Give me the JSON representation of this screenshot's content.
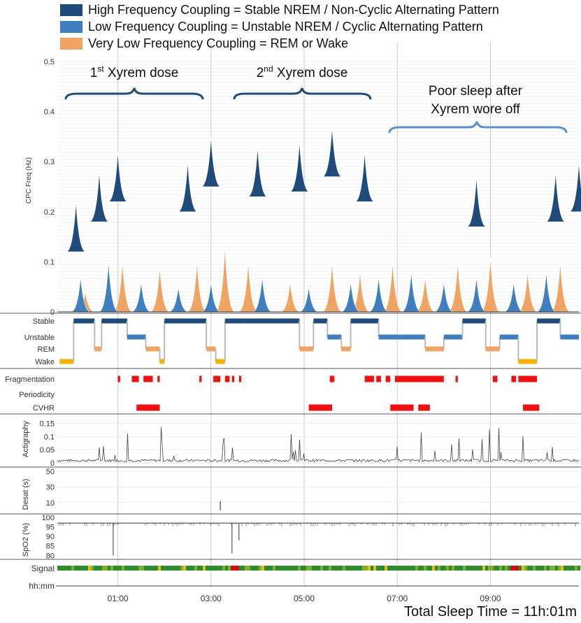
{
  "legend": {
    "high": {
      "label": "High Frequency Coupling = Stable NREM / Non-Cyclic Alternating Pattern",
      "color": "#1f4b7a"
    },
    "low": {
      "label": "Low Frequency Coupling = Unstable NREM / Cyclic Alternating Pattern",
      "color": "#3f7fbf"
    },
    "vlow": {
      "label": "Very Low Frequency Coupling = REM or Wake",
      "color": "#f0a464"
    }
  },
  "annotations": {
    "dose1": {
      "num": "1",
      "sup": "st",
      "text": " Xyrem dose"
    },
    "dose2": {
      "num": "2",
      "sup": "nd",
      "text": " Xyrem dose"
    },
    "poor_line1": "Poor sleep after",
    "poor_line2": "Xyrem wore off"
  },
  "total_sleep": "Total Sleep Time = 11h:01m",
  "chart_data": {
    "type": "area",
    "time_range_h": [
      23.7,
      10.9
    ],
    "time_axis": {
      "label": "hh:mm",
      "ticks": [
        "01:00",
        "03:00",
        "05:00",
        "07:00",
        "09:00"
      ],
      "tick_hours": [
        1,
        3,
        5,
        7,
        9
      ],
      "grid_hours": [
        1,
        3,
        5,
        7,
        9
      ]
    },
    "cpc_panel": {
      "ylabel": "CPC Freq (Hz)",
      "ylim": [
        0,
        0.5
      ],
      "yticks": [
        "0",
        "0.1",
        "0.2",
        "0.3",
        "0.4",
        "0.5"
      ],
      "ytick_values": [
        0,
        0.1,
        0.2,
        0.3,
        0.4,
        0.5
      ],
      "series": [
        {
          "key": "vlow",
          "peaks": [
            [
              0.3,
              0.04
            ],
            [
              1.1,
              0.1
            ],
            [
              1.9,
              0.09
            ],
            [
              2.7,
              0.1
            ],
            [
              3.3,
              0.13
            ],
            [
              3.8,
              0.1
            ],
            [
              4.7,
              0.06
            ],
            [
              5.6,
              0.1
            ],
            [
              6.2,
              0.08
            ],
            [
              6.9,
              0.1
            ],
            [
              7.6,
              0.07
            ],
            [
              8.3,
              0.1
            ],
            [
              9.0,
              0.11
            ],
            [
              9.8,
              0.08
            ],
            [
              10.5,
              0.1
            ]
          ]
        },
        {
          "key": "low",
          "peaks": [
            [
              0.2,
              0.07
            ],
            [
              0.8,
              0.1
            ],
            [
              1.5,
              0.06
            ],
            [
              2.3,
              0.05
            ],
            [
              3.0,
              0.06
            ],
            [
              4.1,
              0.07
            ],
            [
              5.1,
              0.05
            ],
            [
              6.0,
              0.06
            ],
            [
              6.6,
              0.07
            ],
            [
              7.3,
              0.08
            ],
            [
              8.0,
              0.06
            ],
            [
              8.7,
              0.07
            ],
            [
              9.5,
              0.06
            ],
            [
              10.2,
              0.08
            ]
          ]
        },
        {
          "key": "high",
          "peaks": [
            [
              0.1,
              0.22
            ],
            [
              0.6,
              0.28
            ],
            [
              1.0,
              0.32
            ],
            [
              2.5,
              0.3
            ],
            [
              3.0,
              0.35
            ],
            [
              4.0,
              0.33
            ],
            [
              4.9,
              0.34
            ],
            [
              5.6,
              0.37
            ],
            [
              6.3,
              0.32
            ],
            [
              8.7,
              0.27
            ],
            [
              10.4,
              0.28
            ],
            [
              10.9,
              0.3
            ]
          ]
        }
      ]
    },
    "hypnogram": {
      "states": [
        "Stable",
        "Unstable",
        "REM",
        "Wake"
      ],
      "state_colors": [
        "#1f4b7a",
        "#3f7fbf",
        "#f0a464",
        "#f5b400"
      ],
      "segments": [
        [
          23.75,
          0.05,
          3
        ],
        [
          0.05,
          0.5,
          0
        ],
        [
          0.5,
          0.65,
          2
        ],
        [
          0.65,
          1.2,
          0
        ],
        [
          1.2,
          1.6,
          1
        ],
        [
          1.6,
          1.9,
          2
        ],
        [
          1.9,
          2.0,
          3
        ],
        [
          2.0,
          2.9,
          0
        ],
        [
          2.9,
          3.1,
          2
        ],
        [
          3.1,
          3.3,
          3
        ],
        [
          3.3,
          3.7,
          0
        ],
        [
          3.7,
          4.9,
          0
        ],
        [
          4.9,
          5.2,
          2
        ],
        [
          5.2,
          5.5,
          0
        ],
        [
          5.5,
          5.8,
          1
        ],
        [
          5.8,
          6.0,
          2
        ],
        [
          6.0,
          6.6,
          0
        ],
        [
          6.6,
          7.6,
          1
        ],
        [
          7.6,
          8.0,
          2
        ],
        [
          8.0,
          8.4,
          1
        ],
        [
          8.4,
          8.9,
          0
        ],
        [
          8.9,
          9.2,
          2
        ],
        [
          9.2,
          9.6,
          1
        ],
        [
          9.6,
          10.0,
          3
        ],
        [
          10.0,
          10.5,
          0
        ],
        [
          10.5,
          10.9,
          1
        ]
      ]
    },
    "events": {
      "rows": [
        "Fragmentation",
        "Periodicity",
        "CVHR"
      ],
      "color": "#ee1111",
      "fragmentation": [
        [
          1.0,
          1.05
        ],
        [
          1.3,
          1.45
        ],
        [
          1.55,
          1.75
        ],
        [
          1.85,
          1.9
        ],
        [
          2.75,
          2.8
        ],
        [
          3.05,
          3.2
        ],
        [
          3.3,
          3.4
        ],
        [
          3.45,
          3.5
        ],
        [
          3.6,
          3.65
        ],
        [
          5.55,
          5.65
        ],
        [
          6.3,
          6.5
        ],
        [
          6.55,
          6.65
        ],
        [
          6.75,
          6.85
        ],
        [
          6.95,
          8.0
        ],
        [
          8.25,
          8.3
        ],
        [
          9.05,
          9.15
        ],
        [
          9.45,
          9.55
        ],
        [
          9.6,
          10.0
        ]
      ],
      "periodicity": [],
      "cvhr": [
        [
          1.4,
          1.9
        ],
        [
          5.1,
          5.6
        ],
        [
          6.85,
          7.35
        ],
        [
          7.45,
          7.7
        ],
        [
          9.7,
          10.05
        ]
      ]
    },
    "actigraphy": {
      "ylabel": "Actigraphy",
      "ylim": [
        0,
        0.17
      ],
      "yticks": [
        "0",
        "0.05",
        "0.1",
        "0.15"
      ],
      "ytick_values": [
        0,
        0.05,
        0.1,
        0.15
      ]
    },
    "desat": {
      "ylabel": "Desat (s)",
      "ylim": [
        0,
        50
      ],
      "yticks": [
        "10",
        "30",
        "50"
      ],
      "ytick_values": [
        10,
        30,
        50
      ],
      "events": [
        [
          3.2,
          12
        ]
      ]
    },
    "spo2": {
      "ylabel": "SpO2 (%)",
      "ylim": [
        79,
        100
      ],
      "yticks": [
        "80",
        "85",
        "90",
        "95",
        "100"
      ],
      "ytick_values": [
        80,
        85,
        90,
        95,
        100
      ],
      "baseline": 97,
      "dips": [
        [
          0.9,
          80
        ],
        [
          3.45,
          81
        ],
        [
          3.6,
          88
        ]
      ]
    },
    "signal": {
      "label": "Signal",
      "quality_colors": [
        "#2e8b2e",
        "#7fb02f",
        "#e0c020",
        "#e05020",
        "#d01010"
      ],
      "bad_intervals": [
        [
          3.4,
          3.6
        ],
        [
          9.4,
          9.6
        ]
      ]
    }
  }
}
